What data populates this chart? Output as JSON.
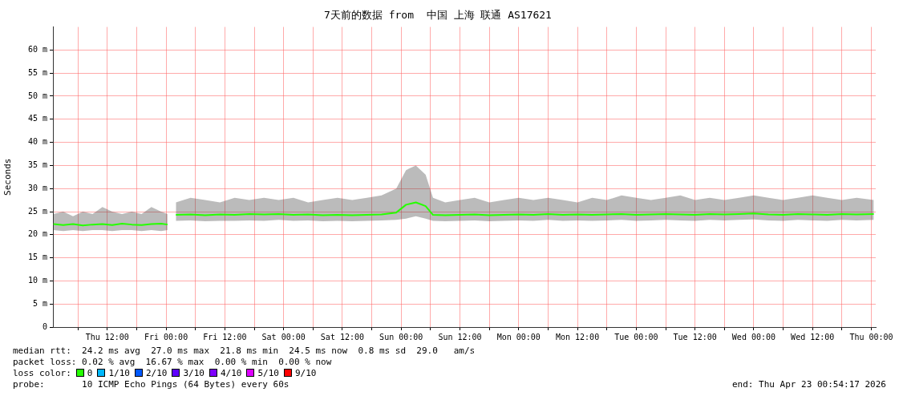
{
  "chart_data": {
    "type": "line",
    "title": "7天前的数据 from  中国 上海 联通 AS17621",
    "ylabel": "Seconds",
    "legend_title": "loss color:",
    "legend": "bottom",
    "grid": true,
    "marker": "none",
    "line_style": "solid",
    "xlim": [
      "2026-04-16T00:54",
      "2026-04-23T00:54"
    ],
    "ylim": [
      0,
      65
    ],
    "xticks": [
      {
        "value": "2026-04-16T06:00",
        "label": null
      },
      {
        "value": "2026-04-16T12:00",
        "label": "Thu 12:00"
      },
      {
        "value": "2026-04-16T18:00",
        "label": null
      },
      {
        "value": "2026-04-17T00:00",
        "label": "Fri 00:00"
      },
      {
        "value": "2026-04-17T06:00",
        "label": null
      },
      {
        "value": "2026-04-17T12:00",
        "label": "Fri 12:00"
      },
      {
        "value": "2026-04-17T18:00",
        "label": null
      },
      {
        "value": "2026-04-18T00:00",
        "label": "Sat 00:00"
      },
      {
        "value": "2026-04-18T06:00",
        "label": null
      },
      {
        "value": "2026-04-18T12:00",
        "label": "Sat 12:00"
      },
      {
        "value": "2026-04-18T18:00",
        "label": null
      },
      {
        "value": "2026-04-19T00:00",
        "label": "Sun 00:00"
      },
      {
        "value": "2026-04-19T06:00",
        "label": null
      },
      {
        "value": "2026-04-19T12:00",
        "label": "Sun 12:00"
      },
      {
        "value": "2026-04-19T18:00",
        "label": null
      },
      {
        "value": "2026-04-20T00:00",
        "label": "Mon 00:00"
      },
      {
        "value": "2026-04-20T06:00",
        "label": null
      },
      {
        "value": "2026-04-20T12:00",
        "label": "Mon 12:00"
      },
      {
        "value": "2026-04-20T18:00",
        "label": null
      },
      {
        "value": "2026-04-21T00:00",
        "label": "Tue 00:00"
      },
      {
        "value": "2026-04-21T06:00",
        "label": null
      },
      {
        "value": "2026-04-21T12:00",
        "label": "Tue 12:00"
      },
      {
        "value": "2026-04-21T18:00",
        "label": null
      },
      {
        "value": "2026-04-22T00:00",
        "label": "Wed 00:00"
      },
      {
        "value": "2026-04-22T06:00",
        "label": null
      },
      {
        "value": "2026-04-22T12:00",
        "label": "Wed 12:00"
      },
      {
        "value": "2026-04-22T18:00",
        "label": null
      },
      {
        "value": "2026-04-23T00:00",
        "label": "Thu 00:00"
      }
    ],
    "yticks": [
      {
        "value": 0,
        "label": "0"
      },
      {
        "value": 5,
        "label": "5 m"
      },
      {
        "value": 10,
        "label": "10 m"
      },
      {
        "value": 15,
        "label": "15 m"
      },
      {
        "value": 20,
        "label": "20 m"
      },
      {
        "value": 25,
        "label": "25 m"
      },
      {
        "value": 30,
        "label": "30 m"
      },
      {
        "value": 35,
        "label": "35 m"
      },
      {
        "value": 40,
        "label": "40 m"
      },
      {
        "value": 45,
        "label": "45 m"
      },
      {
        "value": 50,
        "label": "50 m"
      },
      {
        "value": 55,
        "label": "55 m"
      },
      {
        "value": 60,
        "label": "60 m"
      }
    ],
    "series": [
      {
        "name": "0",
        "color": "#26ff00",
        "x": [
          "2026-04-16T01:00",
          "2026-04-16T03:00",
          "2026-04-16T05:00",
          "2026-04-16T07:00",
          "2026-04-16T09:00",
          "2026-04-16T11:00",
          "2026-04-16T13:00",
          "2026-04-16T15:00",
          "2026-04-16T17:00",
          "2026-04-16T19:00",
          "2026-04-16T21:00",
          "2026-04-16T23:00",
          "2026-04-17T00:18",
          "2026-04-17T01:12",
          "2026-04-17T02:00",
          "2026-04-17T05:00",
          "2026-04-17T08:00",
          "2026-04-17T11:00",
          "2026-04-17T14:00",
          "2026-04-17T17:00",
          "2026-04-17T20:00",
          "2026-04-17T23:00",
          "2026-04-18T02:00",
          "2026-04-18T05:00",
          "2026-04-18T08:00",
          "2026-04-18T11:00",
          "2026-04-18T14:00",
          "2026-04-18T17:00",
          "2026-04-18T20:00",
          "2026-04-18T23:00",
          "2026-04-19T01:00",
          "2026-04-19T03:00",
          "2026-04-19T05:00",
          "2026-04-19T06:30",
          "2026-04-19T09:00",
          "2026-04-19T12:00",
          "2026-04-19T15:00",
          "2026-04-19T18:00",
          "2026-04-19T21:00",
          "2026-04-20T00:00",
          "2026-04-20T03:00",
          "2026-04-20T06:00",
          "2026-04-20T09:00",
          "2026-04-20T12:00",
          "2026-04-20T15:00",
          "2026-04-20T18:00",
          "2026-04-20T21:00",
          "2026-04-21T00:00",
          "2026-04-21T03:00",
          "2026-04-21T06:00",
          "2026-04-21T09:00",
          "2026-04-21T12:00",
          "2026-04-21T15:00",
          "2026-04-21T18:00",
          "2026-04-21T21:00",
          "2026-04-22T00:00",
          "2026-04-22T03:00",
          "2026-04-22T06:00",
          "2026-04-22T09:00",
          "2026-04-22T12:00",
          "2026-04-22T15:00",
          "2026-04-22T18:00",
          "2026-04-22T21:00",
          "2026-04-23T00:30"
        ],
        "values": [
          22.3,
          22.1,
          22.3,
          22.0,
          22.2,
          22.3,
          22.1,
          22.4,
          22.2,
          22.1,
          22.3,
          22.4,
          22.2,
          null,
          24.3,
          24.4,
          24.2,
          24.4,
          24.3,
          24.5,
          24.4,
          24.5,
          24.3,
          24.4,
          24.2,
          24.3,
          24.2,
          24.3,
          24.4,
          24.8,
          26.5,
          27.0,
          26.2,
          24.3,
          24.2,
          24.3,
          24.4,
          24.2,
          24.3,
          24.4,
          24.3,
          24.5,
          24.3,
          24.4,
          24.3,
          24.4,
          24.5,
          24.3,
          24.4,
          24.5,
          24.4,
          24.3,
          24.5,
          24.4,
          24.5,
          24.6,
          24.4,
          24.3,
          24.5,
          24.4,
          24.3,
          24.5,
          24.4,
          24.5
        ],
        "lower": [
          21.0,
          20.8,
          21.0,
          20.8,
          21.0,
          21.0,
          20.8,
          21.0,
          21.0,
          20.8,
          21.0,
          20.8,
          21.0,
          null,
          23.0,
          23.1,
          22.9,
          23.0,
          23.0,
          23.1,
          23.0,
          23.2,
          23.0,
          23.1,
          22.9,
          23.0,
          22.9,
          23.0,
          23.1,
          23.2,
          23.5,
          24.0,
          23.5,
          23.0,
          22.9,
          23.0,
          23.1,
          22.9,
          23.0,
          23.1,
          23.0,
          23.2,
          23.0,
          23.1,
          23.0,
          23.1,
          23.2,
          23.0,
          23.1,
          23.2,
          23.1,
          23.0,
          23.2,
          23.1,
          23.2,
          23.3,
          23.1,
          23.0,
          23.2,
          23.1,
          23.0,
          23.2,
          23.1,
          23.2
        ],
        "upper": [
          24.5,
          25.0,
          24.0,
          25.0,
          24.5,
          26.0,
          25.0,
          24.5,
          25.0,
          24.5,
          26.0,
          25.0,
          24.5,
          null,
          27.0,
          28.0,
          27.5,
          27.0,
          28.0,
          27.5,
          28.0,
          27.5,
          28.0,
          27.0,
          27.5,
          28.0,
          27.5,
          28.0,
          28.5,
          30.0,
          34.0,
          35.0,
          33.0,
          28.0,
          27.0,
          27.5,
          28.0,
          27.0,
          27.5,
          28.0,
          27.5,
          28.0,
          27.5,
          27.0,
          28.0,
          27.5,
          28.5,
          28.0,
          27.5,
          28.0,
          28.5,
          27.5,
          28.0,
          27.5,
          28.0,
          28.5,
          28.0,
          27.5,
          28.0,
          28.5,
          28.0,
          27.5,
          28.0,
          27.5
        ]
      },
      {
        "name": "1/10",
        "color": "#00b8ff"
      },
      {
        "name": "2/10",
        "color": "#0059ff"
      },
      {
        "name": "3/10",
        "color": "#5e00ff"
      },
      {
        "name": "4/10",
        "color": "#7e00ff"
      },
      {
        "name": "5/10",
        "color": "#dd00ff"
      },
      {
        "name": "9/10",
        "color": "#ff0000"
      }
    ],
    "annotations": [
      "median rtt:  24.2 ms avg  27.0 ms max  21.8 ms min  24.5 ms now  0.8 ms sd  29.0   am/s",
      "packet loss: 0.02 % avg  16.67 % max  0.00 % min  0.00 % now",
      "probe:       10 ICMP Echo Pings (64 Bytes) every 60s",
      "end: Thu Apr 23 00:54:17 2026"
    ]
  }
}
